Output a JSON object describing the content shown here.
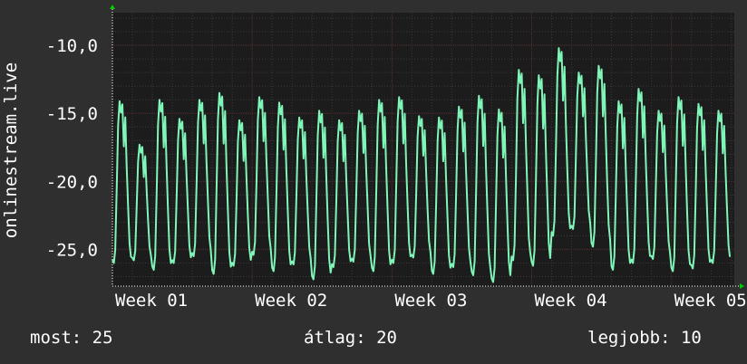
{
  "chart_data": {
    "type": "line",
    "ylabel": "onlinestream.live",
    "xlabel": "",
    "title": "",
    "ylim": [
      -27.7,
      -7.6
    ],
    "yticks": [
      -10,
      -15,
      -20,
      -25
    ],
    "ytick_labels": [
      "-10,0",
      "-15,0",
      "-20,0",
      "-25,0"
    ],
    "xlim": [
      0,
      4.45
    ],
    "xticks": [
      0,
      1,
      2,
      3,
      4
    ],
    "xtick_labels": [
      "Week 01",
      "Week 02",
      "Week 03",
      "Week 04",
      "Week 05"
    ],
    "grid": true,
    "colors": {
      "background": "#2f2f2f",
      "plot_background": "#1c1c1c",
      "grid_minor": "#3a3a3a",
      "grid_major": "#5a2f2f",
      "line": "#7ff5b8",
      "arrow": "#00cc00"
    },
    "series": [
      {
        "color": "#7ff5b8",
        "daily_profile": {
          "min": [
            -26.0,
            -25.8,
            -26.5,
            -26.0,
            -25.5,
            -26.8,
            -26.2,
            -25.4,
            -26.6,
            -26.1,
            -27.2,
            -26.3,
            -25.9,
            -26.6,
            -26.0,
            -25.6,
            -26.8,
            -26.3,
            -26.9,
            -27.4,
            -25.8,
            -26.2,
            -24.0,
            -23.5,
            -24.8,
            -26.5,
            -26.0,
            -25.7,
            -26.6,
            -26.4,
            -26.0
          ],
          "max": [
            -14.1,
            -17.3,
            -14.0,
            -15.4,
            -14.0,
            -13.5,
            -15.5,
            -13.8,
            -14.2,
            -15.3,
            -14.8,
            -15.5,
            -14.8,
            -14.0,
            -13.8,
            -15.2,
            -15.3,
            -14.5,
            -13.7,
            -14.7,
            -11.8,
            -12.2,
            -10.2,
            -12.0,
            -11.5,
            -14.1,
            -13.2,
            -14.8,
            -13.8,
            -14.3,
            -14.8
          ]
        },
        "min_value": -27.4,
        "avg_value": -20.0,
        "max_value": -10.2
      }
    ]
  },
  "stats": {
    "current": "most: 25",
    "average": "átlag: 20",
    "best": "legjobb: 10"
  }
}
